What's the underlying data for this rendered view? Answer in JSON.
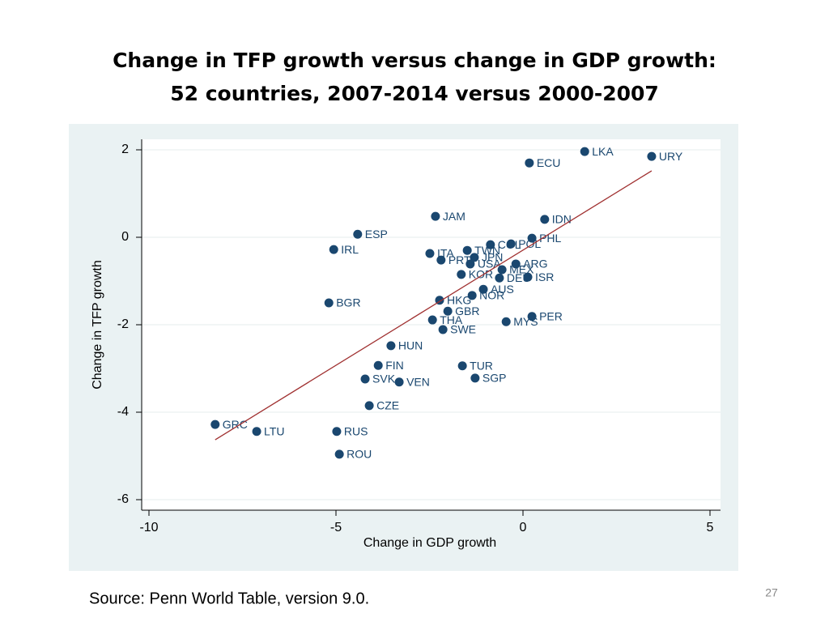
{
  "title": [
    "Change in TFP growth versus change in GDP growth:",
    "52 countries, 2007-2014 versus 2000-2007"
  ],
  "chart_data": {
    "type": "scatter",
    "x_label": "Change in GDP growth",
    "y_label": "Change in TFP growth",
    "xlim": [
      -10,
      5
    ],
    "ylim": [
      -6,
      2
    ],
    "xticks": [
      -10,
      -5,
      0,
      5
    ],
    "yticks": [
      -6,
      -4,
      -2,
      0,
      2
    ],
    "grid": true,
    "color": "#1a476f",
    "fit_color": "#a03030",
    "labels": [
      "LKA",
      "URY",
      "ECU",
      "JAM",
      "IDN",
      "ESP",
      "PHL",
      "IRL",
      "POL",
      "COL",
      "ITA",
      "TWN",
      "JPN",
      "PRT",
      "USA",
      "ARG",
      "MEX",
      "ISR",
      "DEU",
      "KOR",
      "AUS",
      "NOR",
      "BGR",
      "HKG",
      "GBR",
      "THA",
      "SWE",
      "MYS",
      "PER",
      "HUN",
      "FIN",
      "TUR",
      "SGP",
      "SVK",
      "VEN",
      "CZE",
      "GRC",
      "LTU",
      "RUS",
      "ROU"
    ],
    "x": [
      1.65,
      3.44,
      0.17,
      -2.34,
      0.58,
      -4.42,
      0.24,
      -5.06,
      -0.32,
      -0.87,
      -2.49,
      -1.49,
      -1.3,
      -2.19,
      -1.41,
      -0.19,
      -0.56,
      0.13,
      -0.63,
      -1.65,
      -1.06,
      -1.36,
      -5.19,
      -2.23,
      -2.01,
      -2.42,
      -2.14,
      -0.45,
      0.24,
      -3.53,
      -3.87,
      -1.62,
      -1.28,
      -4.22,
      -3.31,
      -4.11,
      -8.23,
      -7.12,
      -4.98,
      -4.91
    ],
    "y": [
      1.96,
      1.85,
      1.7,
      0.48,
      0.41,
      0.07,
      -0.02,
      -0.28,
      -0.15,
      -0.17,
      -0.37,
      -0.3,
      -0.46,
      -0.52,
      -0.61,
      -0.61,
      -0.74,
      -0.91,
      -0.93,
      -0.85,
      -1.19,
      -1.33,
      -1.5,
      -1.44,
      -1.69,
      -1.89,
      -2.11,
      -1.93,
      -1.81,
      -2.48,
      -2.93,
      -2.94,
      -3.22,
      -3.24,
      -3.31,
      -3.85,
      -4.28,
      -4.44,
      -4.44,
      -4.96
    ],
    "fit": {
      "x": [
        -8.23,
        3.44
      ],
      "y": [
        -4.63,
        1.52
      ]
    }
  },
  "source": "Source: Penn World Table, version 9.0.",
  "slide_number": "27"
}
